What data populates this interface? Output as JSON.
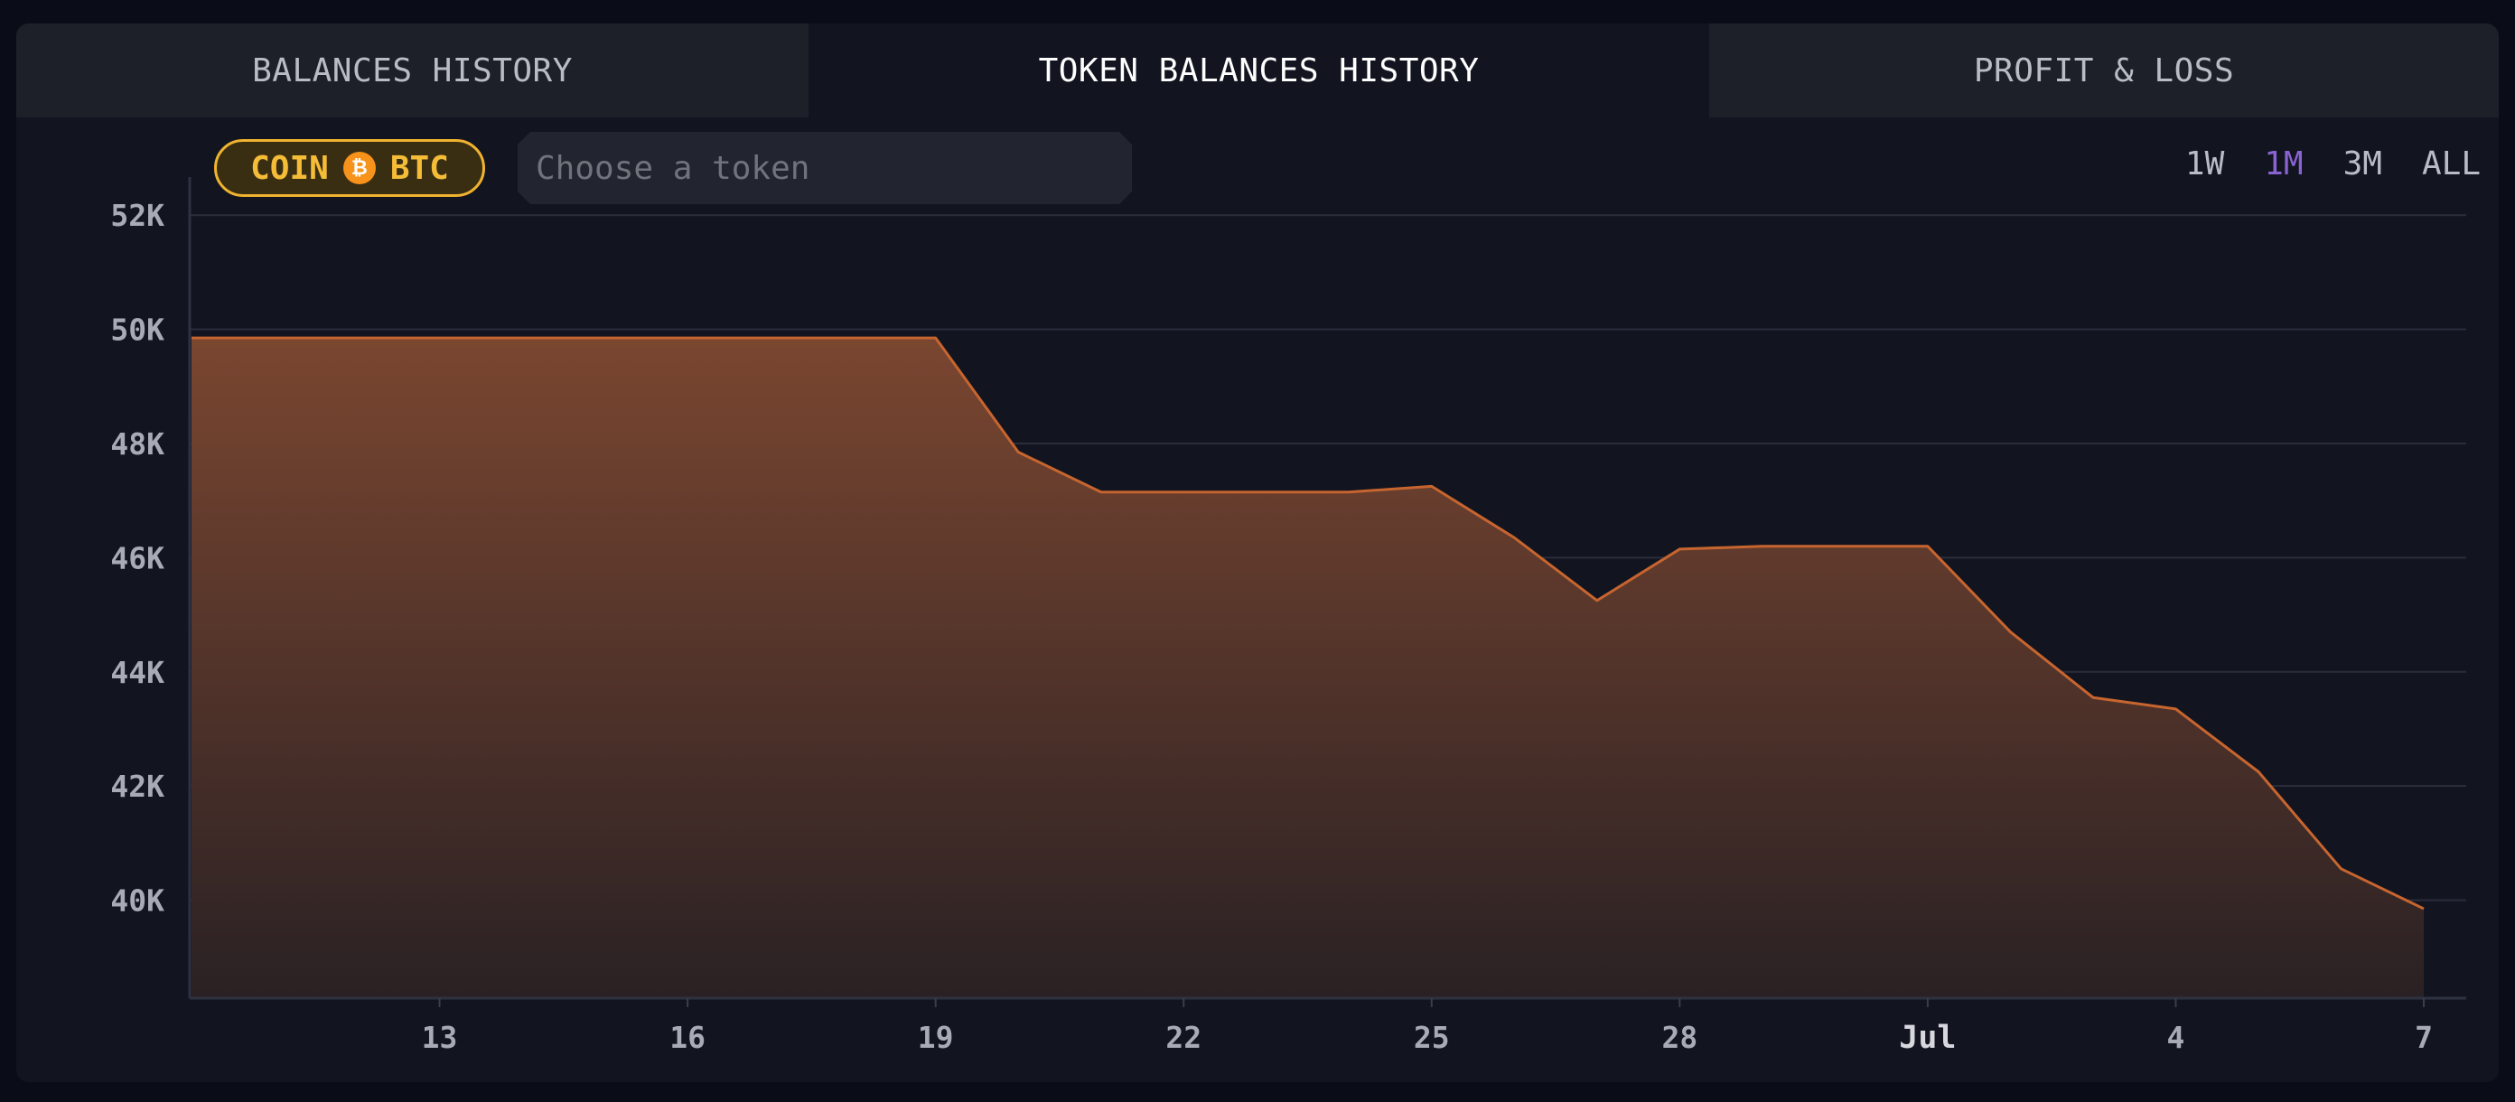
{
  "tabs": [
    {
      "label": "BALANCES HISTORY",
      "active": false
    },
    {
      "label": "TOKEN BALANCES HISTORY",
      "active": true
    },
    {
      "label": "PROFIT & LOSS",
      "active": false
    }
  ],
  "filter": {
    "coin_label": "COIN",
    "coin_symbol": "BTC",
    "coin_icon": "bitcoin-icon",
    "token_placeholder": "Choose a token"
  },
  "ranges": [
    {
      "label": "1W",
      "active": false
    },
    {
      "label": "1M",
      "active": true
    },
    {
      "label": "3M",
      "active": false
    },
    {
      "label": "ALL",
      "active": false
    }
  ],
  "colors": {
    "line": "#c7652f",
    "fill_top": "#7a4630",
    "fill_bottom": "#2a2124",
    "active_range": "#8a63d2",
    "coin": "#f5bd37"
  },
  "chart_data": {
    "type": "area",
    "title": "",
    "xlabel": "",
    "ylabel": "",
    "ylim": [
      38300,
      52700
    ],
    "xlim": [
      "2023-06-10",
      "2023-07-07"
    ],
    "y_ticks": [
      {
        "value": 40000,
        "label": "40K"
      },
      {
        "value": 42000,
        "label": "42K"
      },
      {
        "value": 44000,
        "label": "44K"
      },
      {
        "value": 46000,
        "label": "46K"
      },
      {
        "value": 48000,
        "label": "48K"
      },
      {
        "value": 50000,
        "label": "50K"
      },
      {
        "value": 52000,
        "label": "52K"
      }
    ],
    "x_ticks": [
      {
        "date": "2023-06-13",
        "label": "13",
        "major": false
      },
      {
        "date": "2023-06-16",
        "label": "16",
        "major": false
      },
      {
        "date": "2023-06-19",
        "label": "19",
        "major": false
      },
      {
        "date": "2023-06-22",
        "label": "22",
        "major": false
      },
      {
        "date": "2023-06-25",
        "label": "25",
        "major": false
      },
      {
        "date": "2023-06-28",
        "label": "28",
        "major": false
      },
      {
        "date": "2023-07-01",
        "label": "Jul",
        "major": true
      },
      {
        "date": "2023-07-04",
        "label": "4",
        "major": false
      },
      {
        "date": "2023-07-07",
        "label": "7",
        "major": false
      }
    ],
    "grid": true,
    "legend": "none",
    "series": [
      {
        "points": [
          {
            "x": "2023-06-10",
            "y": 49850
          },
          {
            "x": "2023-06-19",
            "y": 49850
          },
          {
            "x": "2023-06-20",
            "y": 47850
          },
          {
            "x": "2023-06-21",
            "y": 47150
          },
          {
            "x": "2023-06-24",
            "y": 47150
          },
          {
            "x": "2023-06-25",
            "y": 47250
          },
          {
            "x": "2023-06-26",
            "y": 46350
          },
          {
            "x": "2023-06-27",
            "y": 45250
          },
          {
            "x": "2023-06-28",
            "y": 46150
          },
          {
            "x": "2023-06-29",
            "y": 46200
          },
          {
            "x": "2023-07-01",
            "y": 46200
          },
          {
            "x": "2023-07-02",
            "y": 44700
          },
          {
            "x": "2023-07-03",
            "y": 43550
          },
          {
            "x": "2023-07-04",
            "y": 43350
          },
          {
            "x": "2023-07-05",
            "y": 42250
          },
          {
            "x": "2023-07-06",
            "y": 40550
          },
          {
            "x": "2023-07-07",
            "y": 39850
          }
        ]
      }
    ]
  }
}
